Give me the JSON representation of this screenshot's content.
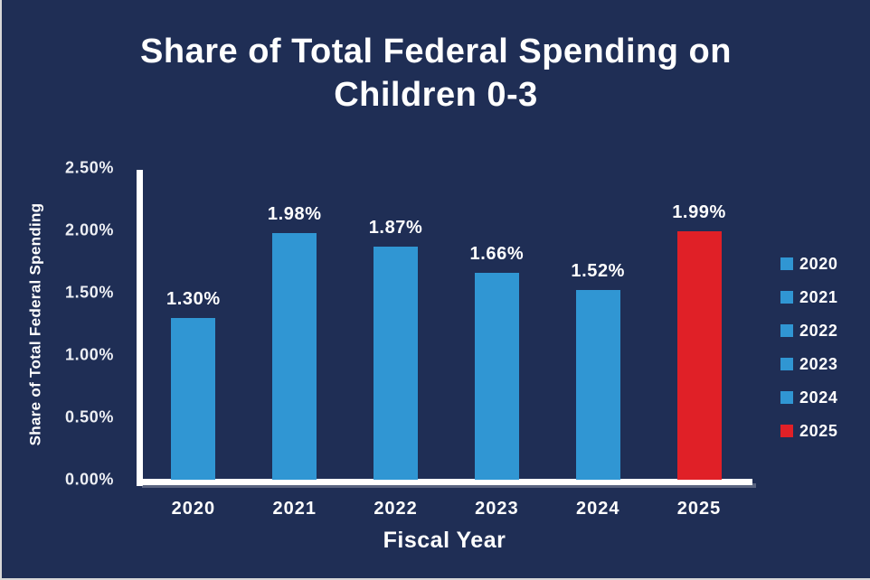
{
  "page": {
    "background": "#1F2E55",
    "frame_border_color": "#D8D8D8",
    "text_color": "#FFFFFF",
    "axis_color": "#FFFFFF"
  },
  "chart_data": {
    "type": "bar",
    "title": "Share of Total Federal Spending on Children 0-3",
    "xlabel": "Fiscal Year",
    "ylabel": "Share of Total Federal Spending",
    "categories": [
      "2020",
      "2021",
      "2022",
      "2023",
      "2024",
      "2025"
    ],
    "values": [
      1.3,
      1.98,
      1.87,
      1.66,
      1.52,
      1.99
    ],
    "value_labels": [
      "1.30%",
      "1.98%",
      "1.87%",
      "1.66%",
      "1.52%",
      "1.99%"
    ],
    "bar_colors": [
      "#3096D3",
      "#3096D3",
      "#3096D3",
      "#3096D3",
      "#3096D3",
      "#E02027"
    ],
    "ylim": [
      0,
      2.5
    ],
    "ytick_labels": [
      "0.00%",
      "0.50%",
      "1.00%",
      "1.50%",
      "2.00%",
      "2.50%"
    ],
    "ytick_values": [
      0,
      0.5,
      1.0,
      1.5,
      2.0,
      2.5
    ],
    "grid": false,
    "legend": {
      "position": "right",
      "entries": [
        {
          "label": "2020",
          "color": "#3096D3"
        },
        {
          "label": "2021",
          "color": "#3096D3"
        },
        {
          "label": "2022",
          "color": "#3096D3"
        },
        {
          "label": "2023",
          "color": "#3096D3"
        },
        {
          "label": "2024",
          "color": "#3096D3"
        },
        {
          "label": "2025",
          "color": "#E02027"
        }
      ]
    }
  }
}
